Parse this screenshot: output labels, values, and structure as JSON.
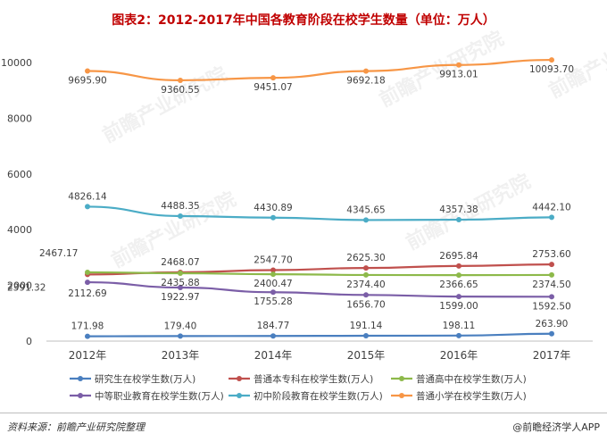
{
  "title": "图表2：2012-2017年中国各教育阶段在校学生数量（单位：万人）",
  "watermark": "前瞻产业研究院",
  "footer": {
    "source": "资料来源：前瞻产业研究院整理",
    "brand": "@前瞻经济学人APP"
  },
  "chart_data": {
    "type": "line",
    "categories": [
      "2012年",
      "2013年",
      "2014年",
      "2015年",
      "2016年",
      "2017年"
    ],
    "ylim": [
      0,
      10000
    ],
    "yticks": [
      0,
      2000,
      4000,
      6000,
      8000,
      10000
    ],
    "grid": false,
    "legend_position": "bottom",
    "series": [
      {
        "name": "研究生在校学生数(万人)",
        "color": "#4a7fbf",
        "values": [
          171.98,
          179.4,
          184.77,
          191.14,
          198.11,
          263.9
        ]
      },
      {
        "name": "普通本专科在校学生数(万人)",
        "color": "#c0504d",
        "values": [
          2391.32,
          2468.07,
          2547.7,
          2625.3,
          2695.84,
          2753.6
        ]
      },
      {
        "name": "普通高中在校学生数(万人)",
        "color": "#8db94a",
        "values": [
          2467.17,
          2435.88,
          2400.47,
          2374.4,
          2366.65,
          2374.5
        ]
      },
      {
        "name": "中等职业教育在校学生数(万人)",
        "color": "#7b5ea7",
        "values": [
          2112.69,
          1922.97,
          1755.28,
          1656.7,
          1599.0,
          1592.5
        ]
      },
      {
        "name": "初中阶段教育在校学生数(万人)",
        "color": "#4bacc6",
        "values": [
          4826.14,
          4488.35,
          4430.89,
          4345.65,
          4357.38,
          4442.1
        ]
      },
      {
        "name": "普通小学在校学生数(万人)",
        "color": "#f79646",
        "values": [
          9695.9,
          9360.55,
          9451.07,
          9692.18,
          9913.01,
          10093.7
        ]
      }
    ]
  }
}
